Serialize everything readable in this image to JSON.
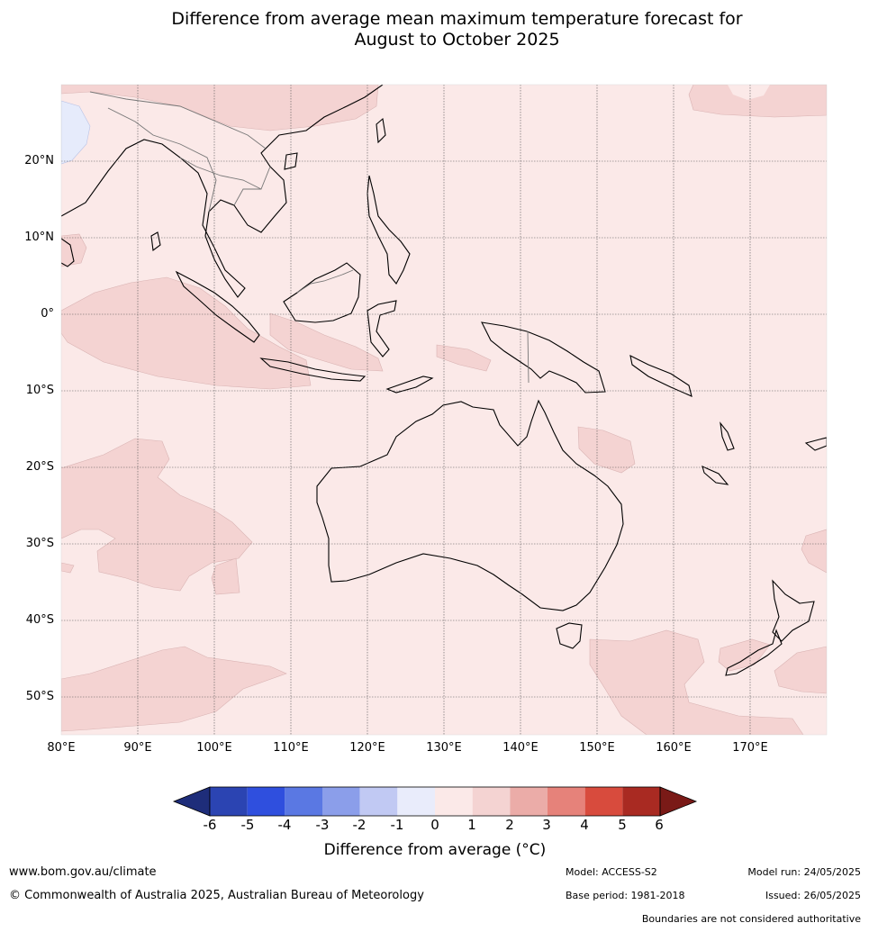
{
  "title": [
    "Difference from average mean maximum temperature forecast for",
    "August to October 2025"
  ],
  "map": {
    "lat_labels": [
      "20°N",
      "10°N",
      "0°",
      "10°S",
      "20°S",
      "30°S",
      "40°S",
      "50°S"
    ],
    "lon_labels": [
      "80°E",
      "90°E",
      "100°E",
      "110°E",
      "120°E",
      "130°E",
      "140°E",
      "150°E",
      "160°E",
      "170°E"
    ],
    "background_class_color": "#fbe9e8",
    "anomaly_class_color": "#f4d3d2",
    "cool_class_color": "#e6ebfb"
  },
  "colorbar": {
    "ticks": [
      "-6",
      "-5",
      "-4",
      "-3",
      "-2",
      "-1",
      "0",
      "1",
      "2",
      "3",
      "4",
      "5",
      "6"
    ],
    "colors": [
      "#1e2d7a",
      "#2b44b2",
      "#2f4fde",
      "#5a78e3",
      "#8b9eea",
      "#c1c9f3",
      "#e9ecfb",
      "#fbe9e8",
      "#f4d3d2",
      "#ebaca8",
      "#e6827a",
      "#d84b3d",
      "#a92a22",
      "#7a1a17"
    ],
    "label": "Difference from average (°C)"
  },
  "footer": {
    "website": "www.bom.gov.au/climate",
    "copyright": "© Commonwealth of Australia 2025, Australian Bureau of Meteorology",
    "model": "Model: ACCESS-S2",
    "base_period": "Base period: 1981-2018",
    "model_run": "Model run: 24/05/2025",
    "issued": "Issued: 26/05/2025",
    "disclaimer": "Boundaries are not considered authoritative"
  }
}
